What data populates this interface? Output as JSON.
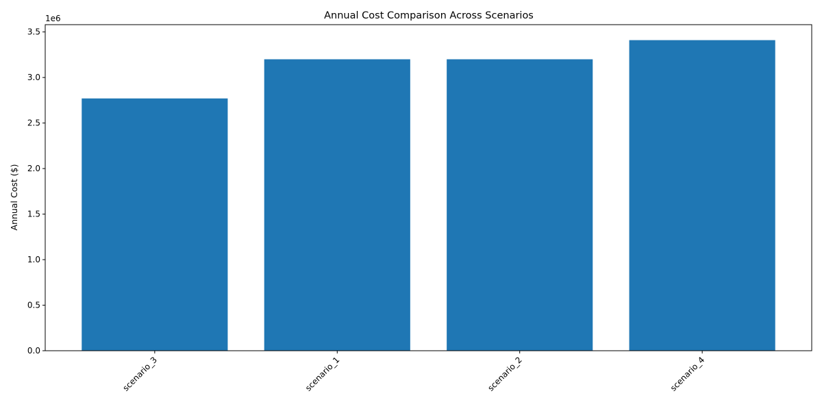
{
  "chart_data": {
    "type": "bar",
    "title": "Annual Cost Comparison Across Scenarios",
    "xlabel": "",
    "ylabel": "Annual Cost ($)",
    "scale_label": "1e6",
    "categories": [
      "scenario_3",
      "scenario_1",
      "scenario_2",
      "scenario_4"
    ],
    "values": [
      2770000,
      3200000,
      3200000,
      3410000
    ],
    "ylim": [
      0,
      3580000
    ],
    "yticks": [
      0,
      0.5,
      1.0,
      1.5,
      2.0,
      2.5,
      3.0,
      3.5
    ],
    "ytick_labels": [
      "0.0",
      "0.5",
      "1.0",
      "1.5",
      "2.0",
      "2.5",
      "3.0",
      "3.5"
    ],
    "grid": false,
    "colors": {
      "bar": "#1f77b4",
      "axis": "#000000"
    }
  }
}
